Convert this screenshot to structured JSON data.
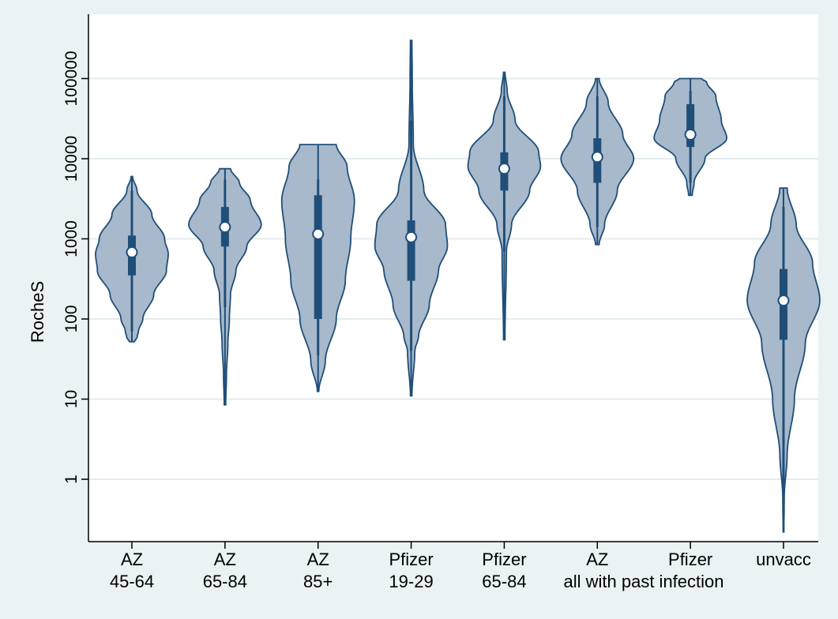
{
  "chart_data": {
    "type": "violin",
    "title": "",
    "xlabel": "",
    "ylabel": "RocheS",
    "yscale": "log",
    "ylim": [
      0.2,
      400000
    ],
    "yticks": [
      {
        "value": 1,
        "label": "1"
      },
      {
        "value": 10,
        "label": "10"
      },
      {
        "value": 100,
        "label": "100"
      },
      {
        "value": 1000,
        "label": "1000"
      },
      {
        "value": 10000,
        "label": "10000"
      },
      {
        "value": 100000,
        "label": "100000"
      }
    ],
    "grid": true,
    "group_annotation": "all with past infection",
    "colors": {
      "violin_fill": "#a8b9cb",
      "violin_stroke": "#1f4e79",
      "box": "#1f4e79",
      "median_marker": "#ffffff",
      "plot_background": "#ffffff",
      "outer_background": "#eaf2f3",
      "grid": "#e4ecee"
    },
    "groups": [
      {
        "label_line1": "AZ",
        "label_line2": "45-64",
        "min": 52,
        "max": 6000,
        "lower_adjacent": 70,
        "upper_adjacent": 4000,
        "q1": 350,
        "median": 680,
        "q3": 1100,
        "profile": [
          [
            52,
            0.06
          ],
          [
            58,
            0.14
          ],
          [
            70,
            0.18
          ],
          [
            100,
            0.3
          ],
          [
            200,
            0.6
          ],
          [
            400,
            0.95
          ],
          [
            650,
            1.0
          ],
          [
            1000,
            0.9
          ],
          [
            2000,
            0.55
          ],
          [
            4000,
            0.14
          ],
          [
            6000,
            0.02
          ]
        ]
      },
      {
        "label_line1": "AZ",
        "label_line2": "65-84",
        "min": 8.5,
        "max": 7500,
        "lower_adjacent": 140,
        "upper_adjacent": 5500,
        "q1": 800,
        "median": 1400,
        "q3": 2500,
        "profile": [
          [
            8.5,
            0.02
          ],
          [
            20,
            0.04
          ],
          [
            50,
            0.08
          ],
          [
            100,
            0.12
          ],
          [
            200,
            0.15
          ],
          [
            400,
            0.3
          ],
          [
            800,
            0.6
          ],
          [
            1500,
            1.0
          ],
          [
            3000,
            0.7
          ],
          [
            5000,
            0.4
          ],
          [
            7500,
            0.15
          ]
        ]
      },
      {
        "label_line1": "AZ",
        "label_line2": "85+",
        "min": 12.5,
        "max": 15000,
        "lower_adjacent": 35,
        "upper_adjacent": 5500,
        "q1": 100,
        "median": 1150,
        "q3": 3500,
        "profile": [
          [
            12.5,
            0.02
          ],
          [
            30,
            0.2
          ],
          [
            100,
            0.5
          ],
          [
            300,
            0.75
          ],
          [
            1000,
            0.9
          ],
          [
            3000,
            1.0
          ],
          [
            8000,
            0.8
          ],
          [
            15000,
            0.5
          ]
        ]
      },
      {
        "label_line1": "Pfizer",
        "label_line2": "19-29",
        "min": 11,
        "max": 300000,
        "lower_adjacent": 40,
        "upper_adjacent": 30000,
        "q1": 300,
        "median": 1050,
        "q3": 1700,
        "profile": [
          [
            11,
            0.02
          ],
          [
            40,
            0.1
          ],
          [
            60,
            0.2
          ],
          [
            150,
            0.5
          ],
          [
            400,
            0.75
          ],
          [
            800,
            1.0
          ],
          [
            1500,
            0.95
          ],
          [
            4000,
            0.35
          ],
          [
            15000,
            0.06
          ],
          [
            100000,
            0.03
          ],
          [
            300000,
            0.02
          ]
        ]
      },
      {
        "label_line1": "Pfizer",
        "label_line2": "65-84",
        "min": 55,
        "max": 120000,
        "lower_adjacent": 700,
        "upper_adjacent": 60000,
        "q1": 4000,
        "median": 7500,
        "q3": 12000,
        "profile": [
          [
            55,
            0.02
          ],
          [
            700,
            0.06
          ],
          [
            1500,
            0.2
          ],
          [
            4000,
            0.7
          ],
          [
            8000,
            1.0
          ],
          [
            12000,
            0.95
          ],
          [
            30000,
            0.3
          ],
          [
            70000,
            0.08
          ],
          [
            120000,
            0.02
          ]
        ]
      },
      {
        "label_line1": "AZ",
        "label_line2": "",
        "min": 850,
        "max": 100000,
        "lower_adjacent": 1400,
        "upper_adjacent": 60000,
        "q1": 5000,
        "median": 10500,
        "q3": 18000,
        "profile": [
          [
            850,
            0.05
          ],
          [
            1500,
            0.2
          ],
          [
            4000,
            0.55
          ],
          [
            10000,
            1.0
          ],
          [
            20000,
            0.7
          ],
          [
            50000,
            0.3
          ],
          [
            100000,
            0.05
          ]
        ]
      },
      {
        "label_line1": "Pfizer",
        "label_line2": "",
        "min": 3500,
        "max": 100000,
        "lower_adjacent": 5000,
        "upper_adjacent": 70000,
        "q1": 14000,
        "median": 20000,
        "q3": 48000,
        "profile": [
          [
            3500,
            0.05
          ],
          [
            5000,
            0.1
          ],
          [
            10000,
            0.4
          ],
          [
            18000,
            1.0
          ],
          [
            30000,
            0.85
          ],
          [
            60000,
            0.7
          ],
          [
            90000,
            0.45
          ],
          [
            100000,
            0.3
          ]
        ]
      },
      {
        "label_line1": "unvacc",
        "label_line2": "",
        "min": 0.22,
        "max": 4300,
        "lower_adjacent": 0.6,
        "upper_adjacent": 2500,
        "q1": 55,
        "median": 170,
        "q3": 420,
        "profile": [
          [
            0.22,
            0.01
          ],
          [
            0.6,
            0.02
          ],
          [
            2,
            0.1
          ],
          [
            10,
            0.3
          ],
          [
            50,
            0.6
          ],
          [
            170,
            1.0
          ],
          [
            500,
            0.8
          ],
          [
            1500,
            0.35
          ],
          [
            4300,
            0.1
          ]
        ]
      }
    ]
  }
}
